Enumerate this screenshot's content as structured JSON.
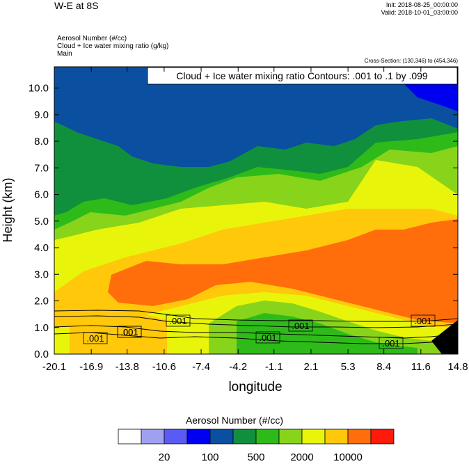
{
  "header": {
    "title": "W-E at 8S",
    "init": "Init: 2018-08-25_00:00:00",
    "valid": "Valid: 2018-10-01_03:00:00",
    "field_lines": [
      "Aerosol Number   (#/cc)",
      "Cloud + Ice water mixing ratio   (g/kg)",
      "Main"
    ],
    "cross_section": "Cross-Section: (130,346) to (454,346)",
    "contour_label": "Cloud + Ice water mixing ratio Contours: .001 to .1 by .099"
  },
  "chart_data": {
    "type": "heatmap",
    "xlabel": "longitude",
    "ylabel": "Height (km)",
    "xlim": [
      -20.1,
      14.8
    ],
    "ylim": [
      0,
      10.8
    ],
    "x_ticks": [
      "-20.1",
      "-16.9",
      "-13.8",
      "-10.6",
      "-7.4",
      "-4.2",
      "-1.1",
      "2.1",
      "5.3",
      "8.4",
      "11.6",
      "14.8"
    ],
    "y_ticks": [
      "0.0",
      "1.0",
      "2.0",
      "3.0",
      "4.0",
      "5.0",
      "6.0",
      "7.0",
      "8.0",
      "9.0",
      "10.0"
    ],
    "colorbar": {
      "title": "Aerosol Number  (#/cc)",
      "colors": [
        "#ffffff",
        "#a0a0f0",
        "#5a5af5",
        "#0000f0",
        "#0a4fa0",
        "#10903c",
        "#2ebb1a",
        "#88d41a",
        "#e8f50a",
        "#ffc80a",
        "#ff6e0a",
        "#ff1a0a"
      ],
      "tick_labels": [
        "20",
        "100",
        "500",
        "2000",
        "10000"
      ]
    },
    "contour_labels": [
      ".001",
      ".001",
      ".001",
      ".001",
      ".001",
      ".001",
      ".001",
      ".001"
    ]
  }
}
